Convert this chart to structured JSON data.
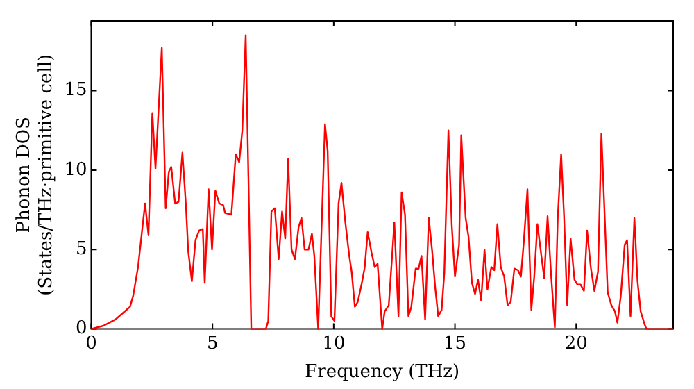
{
  "chart_data": {
    "type": "line",
    "xlabel": "Frequency (THz)",
    "ylabel": "Phonon DOS\n(States/THz·primitive cell)",
    "xlim": [
      0,
      24
    ],
    "ylim": [
      0,
      19.4
    ],
    "xticks": [
      0,
      5,
      10,
      15,
      20
    ],
    "yticks": [
      0,
      5,
      10,
      15
    ],
    "grid": false,
    "legend": false,
    "marker": "none",
    "line_style": "solid",
    "series": [
      {
        "color": "#ff0000",
        "x": [
          0,
          0.5,
          1.0,
          1.3,
          1.6,
          1.73,
          1.93,
          2.22,
          2.36,
          2.52,
          2.65,
          2.91,
          3.07,
          3.2,
          3.3,
          3.46,
          3.6,
          3.76,
          3.9,
          4.0,
          4.15,
          4.3,
          4.45,
          4.6,
          4.68,
          4.84,
          4.98,
          5.12,
          5.28,
          5.44,
          5.52,
          5.78,
          5.96,
          6.1,
          6.23,
          6.37,
          6.6,
          7.2,
          7.3,
          7.43,
          7.57,
          7.73,
          7.87,
          8.0,
          8.12,
          8.26,
          8.4,
          8.55,
          8.67,
          8.8,
          8.96,
          9.1,
          9.2,
          9.36,
          9.64,
          9.75,
          9.9,
          10.03,
          10.2,
          10.32,
          10.48,
          10.64,
          10.74,
          10.87,
          10.99,
          11.16,
          11.28,
          11.4,
          11.56,
          11.69,
          11.81,
          12.0,
          12.1,
          12.27,
          12.39,
          12.5,
          12.67,
          12.8,
          12.94,
          13.08,
          13.2,
          13.38,
          13.5,
          13.62,
          13.77,
          13.92,
          14.06,
          14.18,
          14.31,
          14.45,
          14.56,
          14.73,
          14.87,
          15.0,
          15.17,
          15.26,
          15.44,
          15.56,
          15.7,
          15.83,
          15.95,
          16.08,
          16.22,
          16.34,
          16.5,
          16.62,
          16.75,
          16.89,
          17.03,
          17.17,
          17.3,
          17.45,
          17.6,
          17.72,
          17.84,
          17.99,
          18.15,
          18.27,
          18.4,
          18.54,
          18.68,
          18.82,
          18.97,
          19.12,
          19.24,
          19.38,
          19.5,
          19.63,
          19.77,
          19.93,
          20.05,
          20.18,
          20.32,
          20.45,
          20.6,
          20.75,
          20.9,
          21.04,
          21.3,
          21.45,
          21.6,
          21.7,
          21.84,
          22.0,
          22.1,
          22.24,
          22.4,
          22.53,
          22.66,
          22.82,
          22.9,
          24
        ],
        "values": [
          0,
          0.2,
          0.6,
          1.0,
          1.4,
          2.1,
          3.9,
          7.9,
          5.9,
          13.6,
          10.1,
          17.7,
          7.6,
          9.9,
          10.2,
          7.9,
          8.0,
          11.1,
          7.9,
          4.9,
          3.0,
          5.6,
          6.2,
          6.3,
          2.9,
          8.8,
          5.0,
          8.7,
          7.9,
          7.8,
          7.3,
          7.2,
          11.0,
          10.5,
          12.5,
          18.5,
          0,
          0,
          0.5,
          7.4,
          7.6,
          4.4,
          7.4,
          5.7,
          10.7,
          5.0,
          4.4,
          6.4,
          7.0,
          5.0,
          5.0,
          6.0,
          4.6,
          0,
          12.9,
          11.2,
          0.8,
          0.5,
          7.9,
          9.2,
          6.7,
          4.6,
          3.6,
          1.4,
          1.7,
          2.9,
          3.9,
          6.1,
          4.8,
          3.9,
          4.1,
          0,
          1.1,
          1.5,
          4.2,
          6.7,
          0.8,
          8.6,
          7.2,
          0.8,
          1.4,
          3.8,
          3.8,
          4.6,
          0.6,
          7.0,
          4.9,
          2.7,
          0.8,
          1.2,
          3.5,
          12.5,
          6.5,
          3.3,
          5.3,
          12.2,
          7.0,
          5.8,
          2.9,
          2.2,
          3.1,
          1.8,
          5.0,
          2.5,
          3.9,
          3.7,
          6.6,
          3.9,
          3.3,
          1.5,
          1.7,
          3.8,
          3.7,
          3.3,
          5.5,
          8.8,
          1.2,
          3.3,
          6.6,
          4.9,
          3.2,
          7.1,
          3.3,
          0.1,
          7.0,
          11.0,
          7.1,
          1.5,
          5.7,
          3.1,
          2.8,
          2.8,
          2.4,
          6.2,
          3.9,
          2.4,
          3.6,
          12.3,
          2.3,
          1.5,
          1.1,
          0.4,
          2.1,
          5.3,
          5.6,
          0.8,
          7.0,
          3.0,
          1.1,
          0.3,
          0,
          0
        ]
      }
    ]
  }
}
